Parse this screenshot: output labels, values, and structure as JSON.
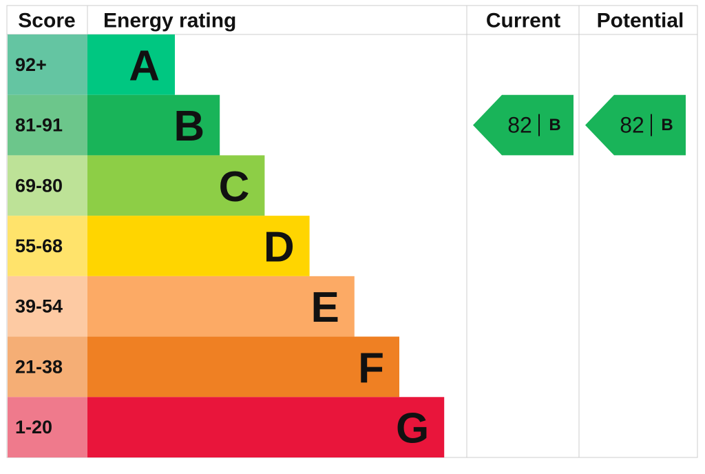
{
  "header": {
    "score": "Score",
    "rating": "Energy rating",
    "current": "Current",
    "potential": "Potential"
  },
  "rows": [
    {
      "range": "92+",
      "letter": "A",
      "color": "#00c781",
      "score_color": "#64c5a2"
    },
    {
      "range": "81-91",
      "letter": "B",
      "color": "#19b459",
      "score_color": "#6cc68b"
    },
    {
      "range": "69-80",
      "letter": "C",
      "color": "#8dce46",
      "score_color": "#bde297"
    },
    {
      "range": "55-68",
      "letter": "D",
      "color": "#ffd500",
      "score_color": "#ffe36b"
    },
    {
      "range": "39-54",
      "letter": "E",
      "color": "#fcaa65",
      "score_color": "#fdcaa3"
    },
    {
      "range": "21-38",
      "letter": "F",
      "color": "#ef8023",
      "score_color": "#f5ae75"
    },
    {
      "range": "1-20",
      "letter": "G",
      "color": "#e9153b",
      "score_color": "#ef7a8c"
    }
  ],
  "current": {
    "score": 82,
    "band": "B"
  },
  "potential": {
    "score": 82,
    "band": "B"
  }
}
